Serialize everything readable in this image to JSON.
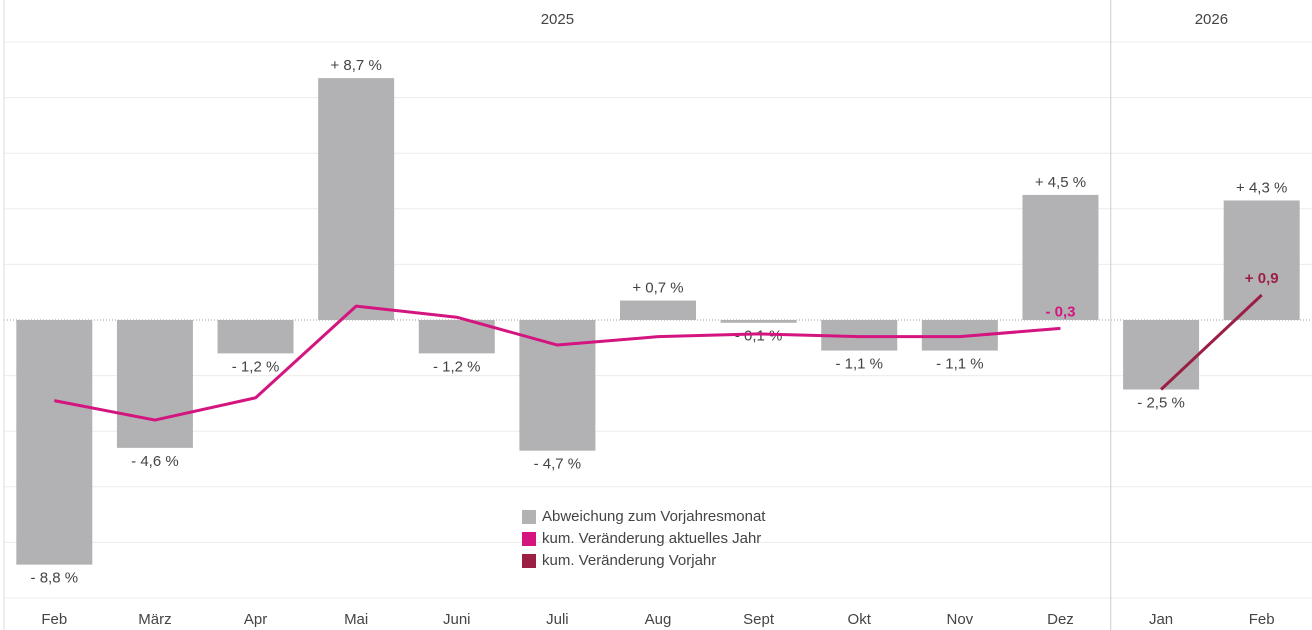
{
  "chart_data": {
    "type": "bar",
    "panels": [
      {
        "title": "2025",
        "categories": [
          "Feb",
          "März",
          "Apr",
          "Mai",
          "Juni",
          "Juli",
          "Aug",
          "Sept",
          "Okt",
          "Nov",
          "Dez"
        ]
      },
      {
        "title": "2026",
        "categories": [
          "Jan",
          "Feb"
        ]
      }
    ],
    "ylim": [
      -10,
      10
    ],
    "yticks": [
      -10,
      -8,
      -6,
      -4,
      -2,
      0,
      2,
      4,
      6,
      8,
      10
    ],
    "grid": true,
    "series": [
      {
        "name": "Abweichung zum Vorjahresmonat",
        "kind": "bar",
        "color": "#b2b2b4",
        "values": [
          -8.8,
          -4.6,
          -1.2,
          8.7,
          -1.2,
          -4.7,
          0.7,
          -0.1,
          -1.1,
          -1.1,
          4.5,
          -2.5,
          4.3
        ],
        "value_labels": [
          "- 8,8 %",
          "- 4,6 %",
          "- 1,2 %",
          "+ 8,7 %",
          "- 1,2 %",
          "- 4,7 %",
          "+ 0,7 %",
          "- 0,1 %",
          "- 1,1 %",
          "- 1,1 %",
          "+ 4,5 %",
          "- 2,5 %",
          "+ 4,3 %"
        ]
      },
      {
        "name": "kum. Veränderung aktuelles Jahr",
        "kind": "line",
        "color": "#d4147f",
        "values": [
          -2.9,
          -3.6,
          -2.8,
          0.5,
          0.1,
          -0.9,
          -0.6,
          -0.5,
          -0.6,
          -0.6,
          -0.3,
          null,
          null
        ],
        "value_labels": [
          null,
          null,
          null,
          null,
          null,
          null,
          null,
          null,
          null,
          null,
          "- 0,3",
          null,
          null
        ]
      },
      {
        "name": "kum. Veränderung Vorjahr",
        "kind": "line",
        "color": "#9b1f45",
        "values": [
          null,
          null,
          null,
          null,
          null,
          null,
          null,
          null,
          null,
          null,
          null,
          -2.5,
          0.9
        ],
        "value_labels": [
          null,
          null,
          null,
          null,
          null,
          null,
          null,
          null,
          null,
          null,
          null,
          null,
          "+ 0,9"
        ]
      }
    ]
  }
}
